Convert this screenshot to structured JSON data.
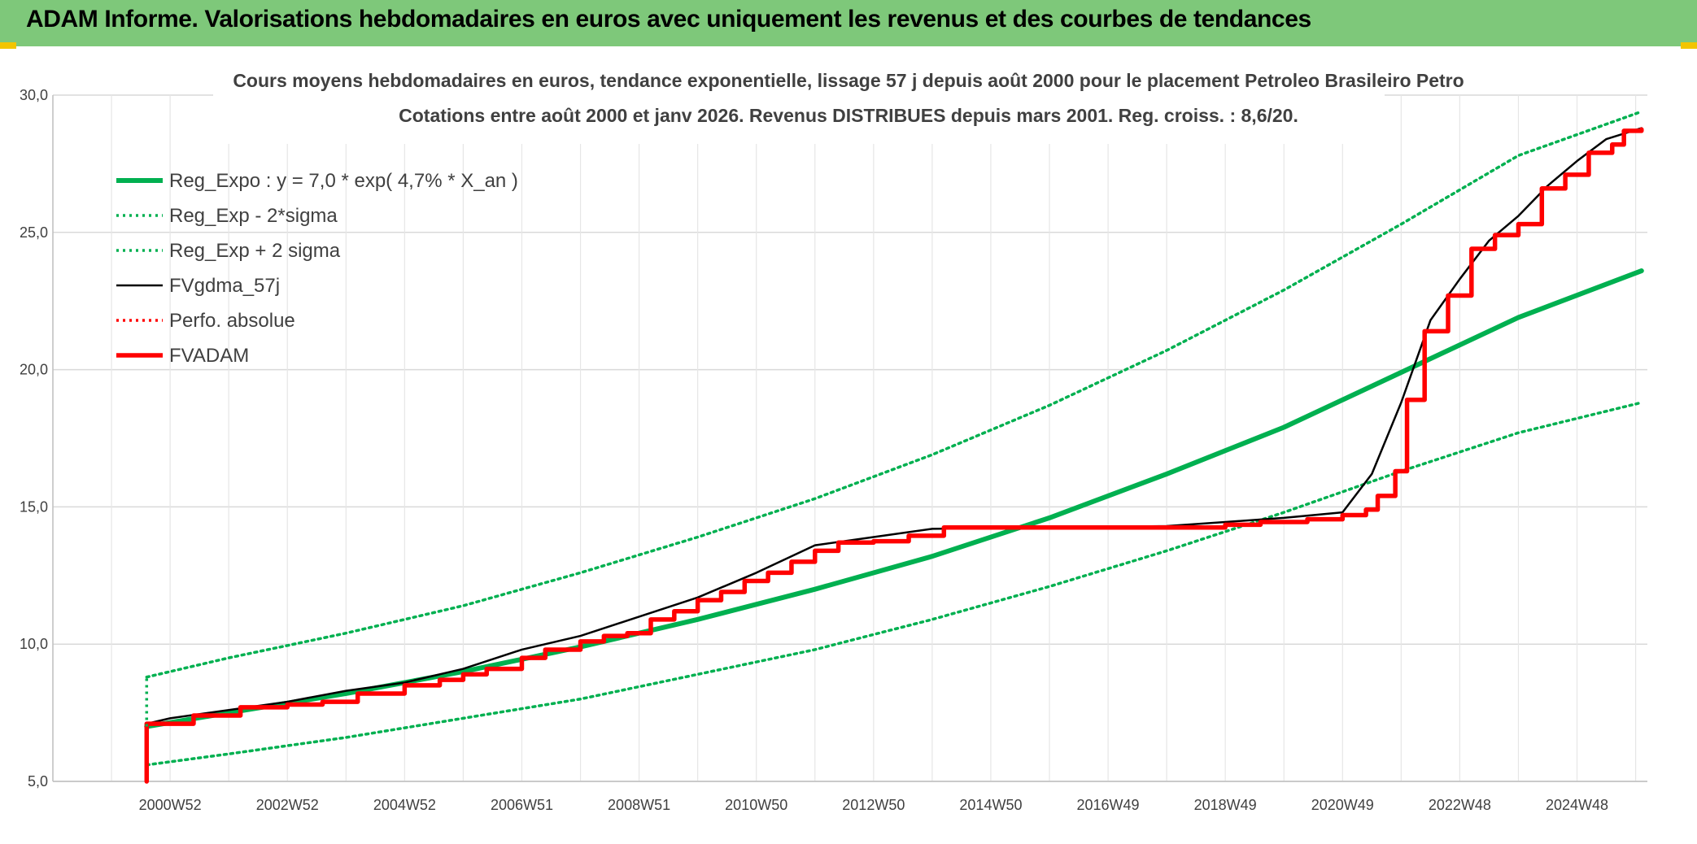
{
  "header": {
    "title": "ADAM Informe. Valorisations hebdomadaires en euros avec uniquement les revenus et des courbes de tendances"
  },
  "colors": {
    "header_bg": "#7ec87a",
    "accent_corner": "#f2c500",
    "reg_expo": "#00b050",
    "fvadam": "#ff0000",
    "fvgdma": "#000000",
    "grid": "#d9d9d9"
  },
  "chart_data": {
    "type": "line",
    "title": "Cours moyens hebdomadaires en euros, tendance exponentielle, lissage 57 j depuis août 2000 pour le placement Petroleo Brasileiro Petro",
    "subtitle": "Cotations entre août 2000 et janv 2026. Revenus DISTRIBUES depuis mars 2001. Reg. croiss. : 8,6/20.",
    "xlabel": "",
    "ylabel": "",
    "ylim": [
      5,
      30
    ],
    "xlim": [
      1999.0,
      2026.2
    ],
    "y_ticks": [
      "5,0",
      "10,0",
      "15,0",
      "20,0",
      "25,0",
      "30,0"
    ],
    "y_tick_values": [
      5,
      10,
      15,
      20,
      25,
      30
    ],
    "x_tick_labels": [
      "2000W52",
      "2002W52",
      "2004W52",
      "2006W51",
      "2008W51",
      "2010W50",
      "2012W50",
      "2014W50",
      "2016W49",
      "2018W49",
      "2020W49",
      "2022W48",
      "2024W48"
    ],
    "x_tick_years": [
      2001.0,
      2003.0,
      2005.0,
      2007.0,
      2009.0,
      2011.0,
      2013.0,
      2015.0,
      2017.0,
      2019.0,
      2021.0,
      2023.0,
      2025.0
    ],
    "grid": true,
    "legend_position": "top-left",
    "series": [
      {
        "name": "Reg_Expo : y = 7,0 * exp( 4,7% *  X_an )",
        "style": "solid-thick",
        "color": "#00b050",
        "x": [
          2000.6,
          2002,
          2004,
          2006,
          2008,
          2010,
          2012,
          2014,
          2016,
          2018,
          2020,
          2022,
          2024,
          2026.1
        ],
        "y": [
          7.0,
          7.5,
          8.2,
          9.0,
          9.9,
          10.9,
          12.0,
          13.2,
          14.6,
          16.2,
          17.9,
          19.9,
          21.9,
          23.6
        ]
      },
      {
        "name": "Reg_Exp - 2*sigma",
        "style": "dotted",
        "color": "#00b050",
        "x": [
          2000.6,
          2002,
          2004,
          2006,
          2008,
          2010,
          2012,
          2014,
          2016,
          2018,
          2020,
          2022,
          2024,
          2026.1
        ],
        "y": [
          5.6,
          6.0,
          6.6,
          7.3,
          8.0,
          8.9,
          9.8,
          10.9,
          12.1,
          13.4,
          14.8,
          16.3,
          17.7,
          18.8
        ]
      },
      {
        "name": "Reg_Exp + 2 sigma",
        "style": "dotted",
        "color": "#00b050",
        "x": [
          2000.6,
          2002,
          2004,
          2006,
          2008,
          2010,
          2012,
          2014,
          2016,
          2018,
          2020,
          2022,
          2024,
          2026.1
        ],
        "y": [
          8.8,
          9.5,
          10.4,
          11.4,
          12.6,
          13.9,
          15.3,
          16.9,
          18.7,
          20.7,
          22.9,
          25.3,
          27.8,
          29.4
        ]
      },
      {
        "name": "FVgdma_57j",
        "style": "solid-thin",
        "color": "#000000",
        "x": [
          2000.6,
          2001.0,
          2002.0,
          2003.0,
          2004.0,
          2005.0,
          2006.0,
          2007.0,
          2008.0,
          2009.0,
          2010.0,
          2011.0,
          2012.0,
          2013.0,
          2014.0,
          2016.0,
          2018.0,
          2019.0,
          2020.0,
          2021.0,
          2021.5,
          2022.0,
          2022.5,
          2023.0,
          2023.5,
          2024.0,
          2024.5,
          2025.0,
          2025.5,
          2026.1
        ],
        "y": [
          7.1,
          7.3,
          7.6,
          7.9,
          8.3,
          8.6,
          9.1,
          9.8,
          10.3,
          11.0,
          11.7,
          12.6,
          13.6,
          13.9,
          14.2,
          14.25,
          14.3,
          14.45,
          14.6,
          14.8,
          16.2,
          18.8,
          21.8,
          23.3,
          24.7,
          25.6,
          26.7,
          27.6,
          28.4,
          28.8
        ]
      },
      {
        "name": "Perfo. absolue",
        "style": "dotted",
        "color": "#ff0000",
        "x": [],
        "y": []
      },
      {
        "name": "FVADAM",
        "style": "step-thick",
        "color": "#ff0000",
        "x": [
          2000.6,
          2000.6,
          2001.4,
          2002.2,
          2003.0,
          2003.6,
          2004.2,
          2005.0,
          2005.6,
          2006.0,
          2006.4,
          2007.0,
          2007.4,
          2008.0,
          2008.4,
          2008.8,
          2009.2,
          2009.6,
          2010.0,
          2010.4,
          2010.8,
          2011.2,
          2011.6,
          2012.0,
          2012.4,
          2013.0,
          2013.6,
          2014.2,
          2016.0,
          2018.0,
          2019.0,
          2019.6,
          2020.4,
          2021.0,
          2021.4,
          2021.6,
          2021.9,
          2022.1,
          2022.4,
          2022.8,
          2023.2,
          2023.6,
          2024.0,
          2024.4,
          2024.8,
          2025.2,
          2025.6,
          2025.8,
          2026.1
        ],
        "y": [
          5.0,
          7.1,
          7.4,
          7.7,
          7.8,
          7.9,
          8.2,
          8.5,
          8.7,
          8.9,
          9.1,
          9.5,
          9.8,
          10.1,
          10.3,
          10.4,
          10.9,
          11.2,
          11.6,
          11.9,
          12.3,
          12.6,
          13.0,
          13.4,
          13.7,
          13.75,
          13.95,
          14.25,
          14.25,
          14.25,
          14.35,
          14.45,
          14.55,
          14.7,
          14.9,
          15.4,
          16.3,
          18.9,
          21.4,
          22.7,
          24.4,
          24.9,
          25.3,
          26.6,
          27.1,
          27.9,
          28.2,
          28.7,
          28.75
        ]
      }
    ]
  }
}
